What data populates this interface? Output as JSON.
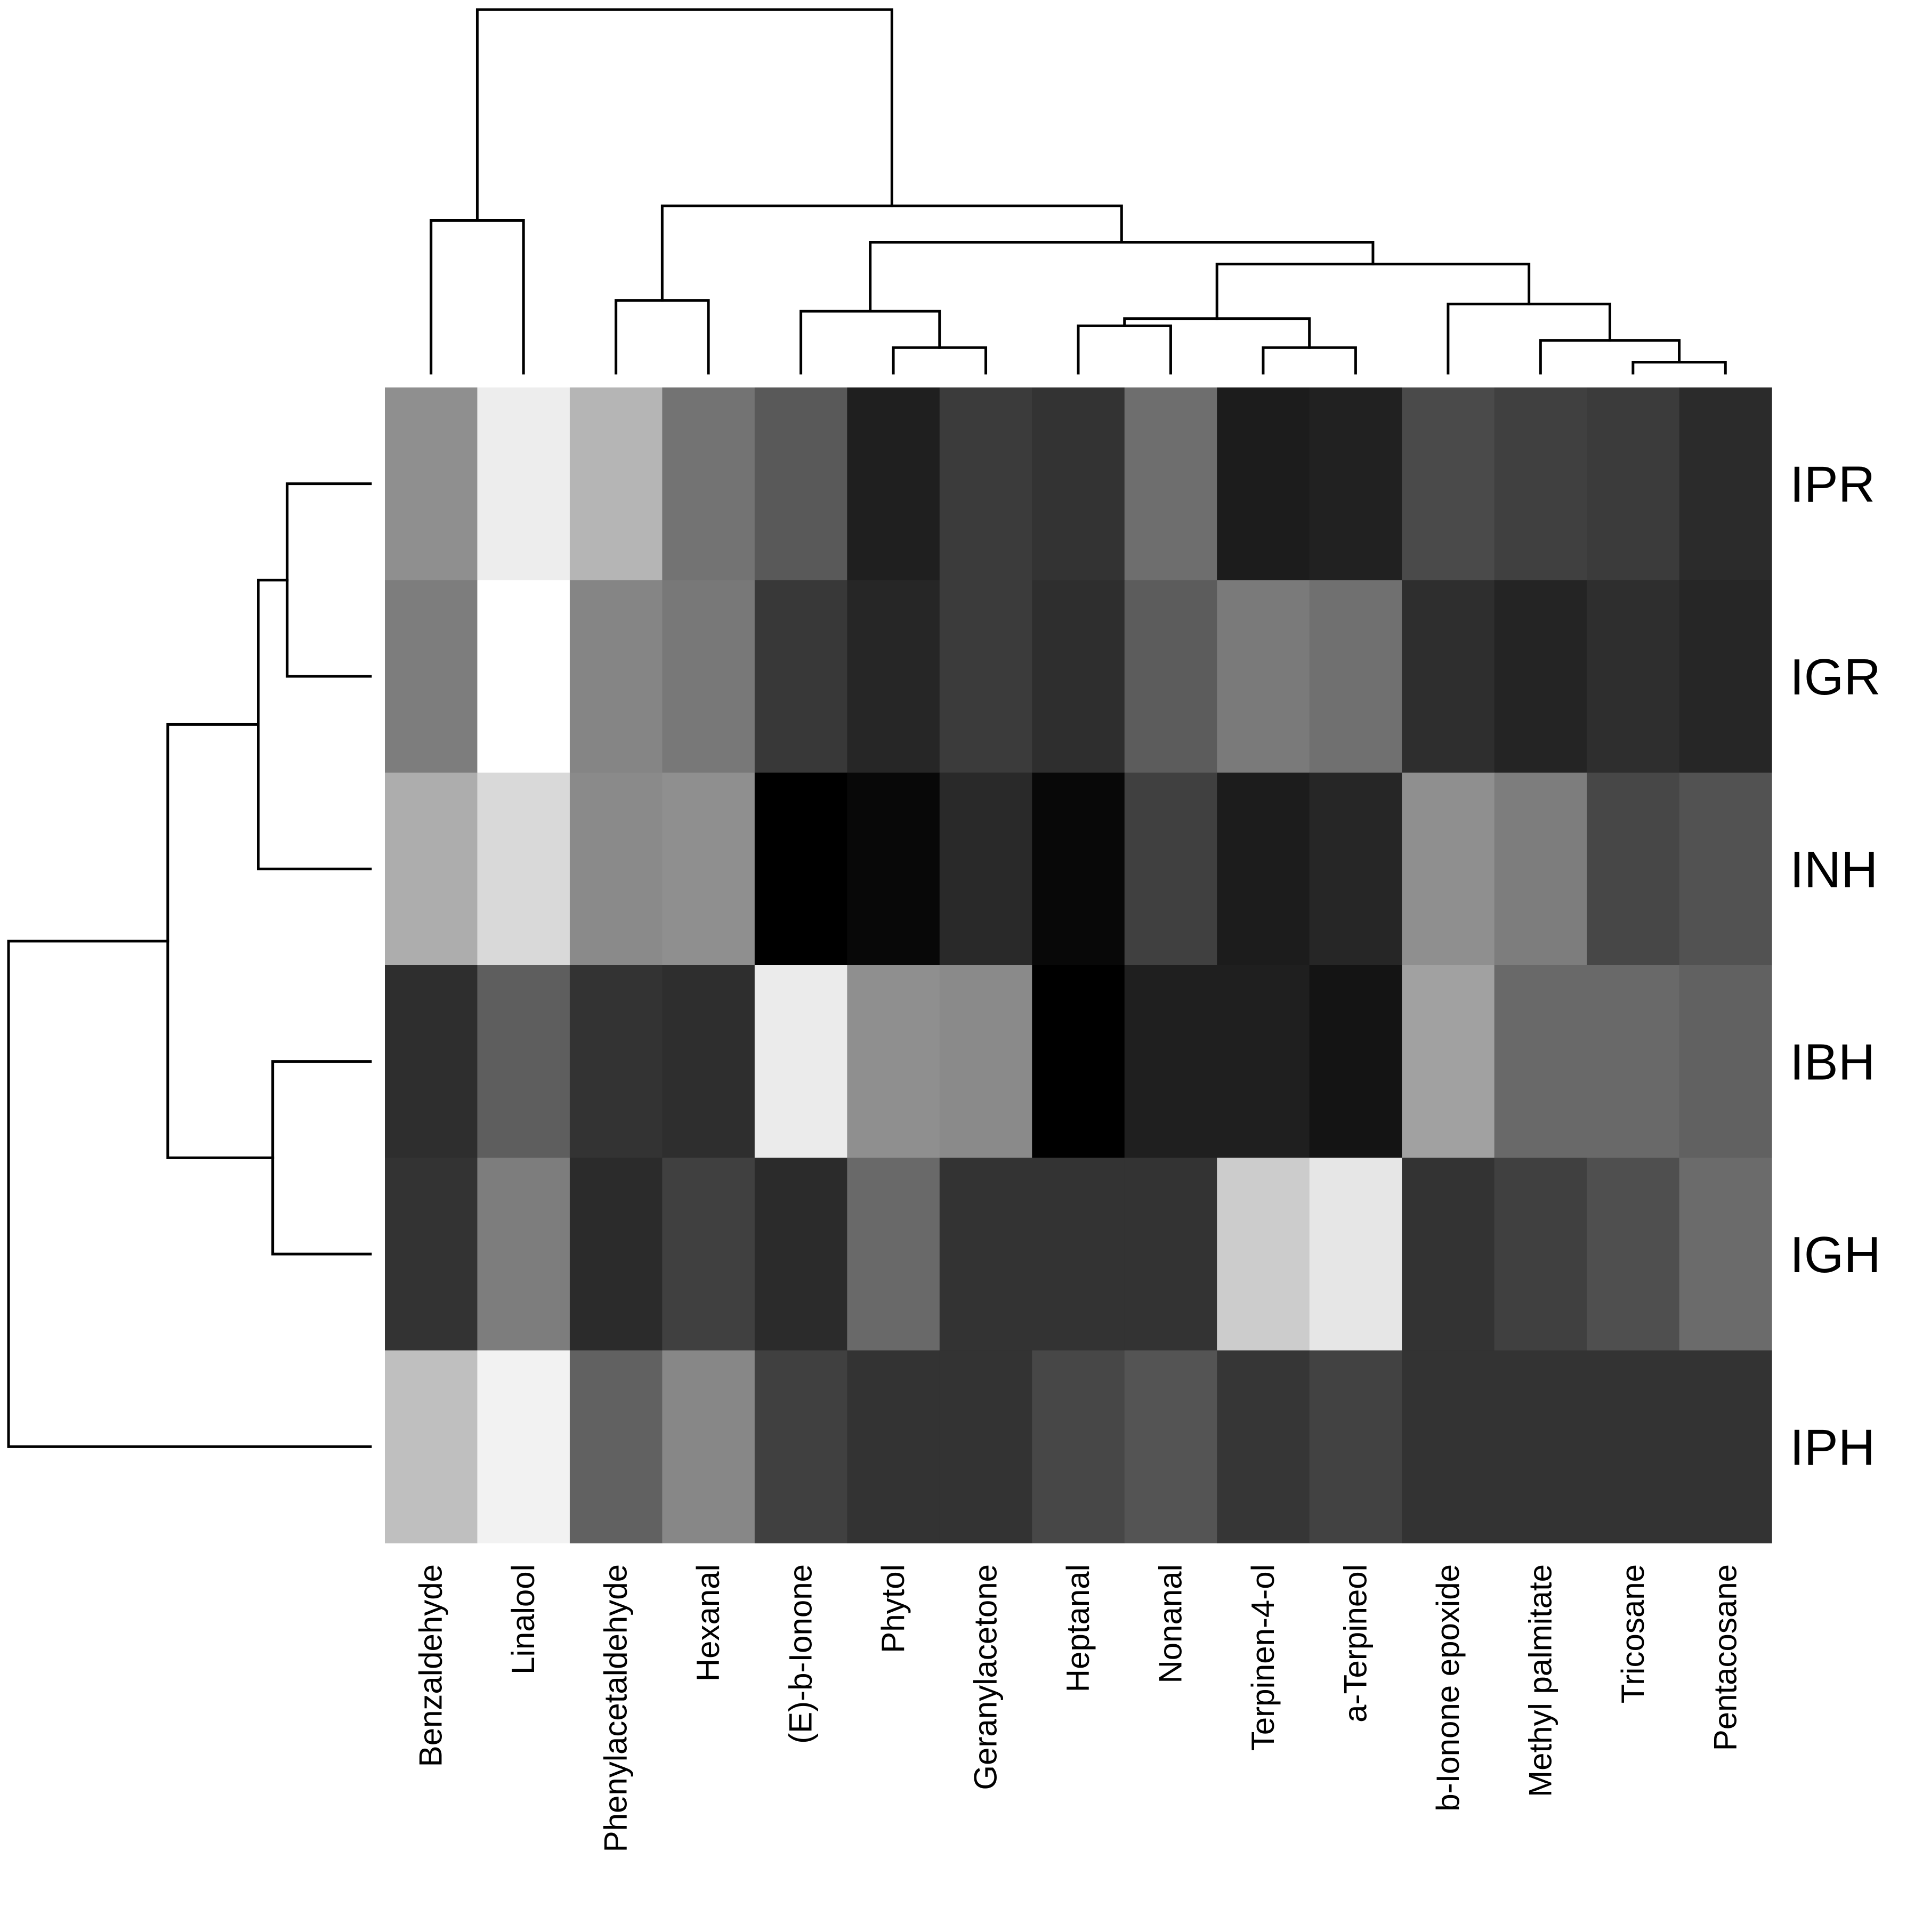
{
  "chart_data": {
    "type": "heatmap",
    "title": "",
    "xlabel": "",
    "ylabel": "",
    "color_scale": "grayscale",
    "color_range": {
      "low": "#000000",
      "high": "#ffffff"
    },
    "value_range": [
      0,
      1
    ],
    "rows": [
      "IPR",
      "IGR",
      "INH",
      "IBH",
      "IGH",
      "IPH"
    ],
    "columns": [
      "Benzaldehyde",
      "Linalool",
      "Phenylacetaldehyde",
      "Hexanal",
      "(E)-b-Ionone",
      "Phytol",
      "Geranylacetone",
      "Heptanal",
      "Nonanal",
      "Terpinen-4-ol",
      "a-Terpineol",
      "b-Ionone epoxide",
      "Methyl palmitate",
      "Tricosane",
      "Pentacosane"
    ],
    "values": [
      [
        0.56,
        0.93,
        0.71,
        0.45,
        0.35,
        0.12,
        0.23,
        0.2,
        0.43,
        0.11,
        0.13,
        0.29,
        0.25,
        0.23,
        0.17
      ],
      [
        0.49,
        1.0,
        0.52,
        0.47,
        0.22,
        0.15,
        0.23,
        0.18,
        0.36,
        0.48,
        0.44,
        0.18,
        0.14,
        0.18,
        0.15
      ],
      [
        0.68,
        0.85,
        0.54,
        0.56,
        0.0,
        0.03,
        0.16,
        0.03,
        0.25,
        0.11,
        0.15,
        0.56,
        0.49,
        0.28,
        0.32
      ],
      [
        0.18,
        0.37,
        0.2,
        0.18,
        0.92,
        0.56,
        0.54,
        0.0,
        0.12,
        0.12,
        0.08,
        0.63,
        0.41,
        0.41,
        0.38
      ],
      [
        0.2,
        0.49,
        0.17,
        0.25,
        0.17,
        0.41,
        0.2,
        0.2,
        0.2,
        0.8,
        0.9,
        0.2,
        0.25,
        0.31,
        0.42
      ],
      [
        0.75,
        0.95,
        0.38,
        0.53,
        0.25,
        0.2,
        0.2,
        0.28,
        0.33,
        0.21,
        0.26,
        0.2,
        0.2,
        0.2,
        0.2
      ]
    ],
    "row_dendrogram": {
      "merges": [
        {
          "left": "IPR",
          "right": "IGR",
          "height": 0.23
        },
        {
          "left": "IPR+IGR",
          "right": "INH",
          "height": 0.31
        },
        {
          "left": "IBH",
          "right": "IGH",
          "height": 0.27
        },
        {
          "left": "IPR+IGR+INH",
          "right": "IBH+IGH",
          "height": 0.56
        },
        {
          "left": "IPR+IGR+INH+IBH+IGH",
          "right": "IPH",
          "height": 1.0
        }
      ]
    },
    "column_dendrogram": {
      "merges": [
        {
          "left": "Tricosane",
          "right": "Pentacosane",
          "height": 0.03
        },
        {
          "left": "Phytol",
          "right": "Geranylacetone",
          "height": 0.07
        },
        {
          "left": "Terpinen-4-ol",
          "right": "a-Terpineol",
          "height": 0.07
        },
        {
          "left": "Methyl palmitate",
          "right": "Tricosane+Pentacosane",
          "height": 0.09
        },
        {
          "left": "Heptanal",
          "right": "Nonanal",
          "height": 0.13
        },
        {
          "left": "Heptanal+Nonanal",
          "right": "Terpinen-4-ol+a-Terpineol",
          "height": 0.15
        },
        {
          "left": "(E)-b-Ionone",
          "right": "Phytol+Geranylacetone",
          "height": 0.17
        },
        {
          "left": "b-Ionone epoxide",
          "right": "Methyl palmitate+Tricosane+Pentacosane",
          "height": 0.19
        },
        {
          "left": "Phenylacetaldehyde",
          "right": "Hexanal",
          "height": 0.2
        },
        {
          "left": "Heptanal+Nonanal+Terpinen-4-ol+a-Terpineol",
          "right": "b-Ionone epoxide+Methyl palmitate+Tricosane+Pentacosane",
          "height": 0.3
        },
        {
          "left": "(E)-b-Ionone+Phytol+Geranylacetone",
          "right": "Heptanal+Nonanal+Terpinen-4-ol+a-Terpineol+b-Ionone epoxide+Methyl palmitate+Tricosane+Pentacosane",
          "height": 0.36
        },
        {
          "left": "Phenylacetaldehyde+Hexanal",
          "right": "(E)-b-Ionone+Phytol+Geranylacetone+Heptanal+Nonanal+Terpinen-4-ol+a-Terpineol+b-Ionone epoxide+Methyl palmitate+Tricosane+Pentacosane",
          "height": 0.46
        },
        {
          "left": "Benzaldehyde",
          "right": "Linalool",
          "height": 0.42
        },
        {
          "left": "Benzaldehyde+Linalool",
          "right": "Phenylacetaldehyde+Hexanal+(E)-b-Ionone+Phytol+Geranylacetone+Heptanal+Nonanal+Terpinen-4-ol+a-Terpineol+b-Ionone epoxide+Methyl palmitate+Tricosane+Pentacosane",
          "height": 1.0
        }
      ]
    }
  }
}
